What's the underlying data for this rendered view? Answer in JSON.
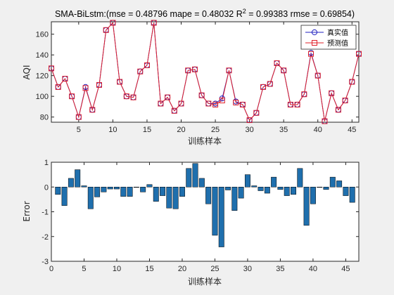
{
  "chart_data": [
    {
      "type": "line",
      "title": "SMA-BiLstm:(mse = 0.48796 mape = 0.48032  R",
      "title_sup": "2",
      "title_tail": " = 0.99383 rmse = 0.69854)",
      "xlabel": "训练样本",
      "ylabel": "AQI",
      "xlim": [
        1,
        46
      ],
      "ylim": [
        75,
        172
      ],
      "xticks": [
        5,
        10,
        15,
        20,
        25,
        30,
        35,
        40,
        45
      ],
      "yticks": [
        80,
        100,
        120,
        140,
        160
      ],
      "legend_position": "top-right",
      "x": [
        1,
        2,
        3,
        4,
        5,
        6,
        7,
        8,
        9,
        10,
        11,
        12,
        13,
        14,
        15,
        16,
        17,
        18,
        19,
        20,
        21,
        22,
        23,
        24,
        25,
        26,
        27,
        28,
        29,
        30,
        31,
        32,
        33,
        34,
        35,
        36,
        37,
        38,
        39,
        40,
        41,
        42,
        43,
        44,
        45,
        46
      ],
      "series": [
        {
          "name": "真实值",
          "color": "#1f1fbf",
          "marker": "circle",
          "values": [
            127,
            109,
            117,
            100,
            80,
            109,
            87,
            111,
            164,
            171,
            114,
            100,
            99,
            124,
            130,
            171,
            93,
            99,
            86,
            93,
            125,
            126,
            101,
            93,
            93,
            98,
            125,
            95,
            92,
            77,
            84,
            109,
            112,
            132,
            125,
            92,
            92,
            102,
            142,
            120,
            76,
            103,
            87,
            96,
            114,
            141
          ]
        },
        {
          "name": "预测值",
          "color": "#e0202a",
          "marker": "square",
          "values": [
            127,
            109,
            117,
            100,
            80,
            108,
            87,
            111,
            164,
            171,
            114,
            100,
            99,
            124,
            130,
            171,
            93,
            99,
            86,
            93,
            125,
            126,
            101,
            93,
            92,
            96,
            125,
            94,
            92,
            77,
            84,
            109,
            112,
            132,
            125,
            92,
            92,
            102,
            141,
            120,
            76,
            103,
            87,
            96,
            114,
            141
          ]
        }
      ]
    },
    {
      "type": "bar",
      "xlabel": "训练样本",
      "ylabel": "Error",
      "xlim": [
        0,
        47
      ],
      "ylim": [
        -3,
        1
      ],
      "xticks": [
        0,
        5,
        10,
        15,
        20,
        25,
        30,
        35,
        40,
        45
      ],
      "yticks": [
        -3,
        -2,
        -1,
        0,
        1
      ],
      "bar_color": "#1f6fad",
      "x": [
        1,
        2,
        3,
        4,
        5,
        6,
        7,
        8,
        9,
        10,
        11,
        12,
        13,
        14,
        15,
        16,
        17,
        18,
        19,
        20,
        21,
        22,
        23,
        24,
        25,
        26,
        27,
        28,
        29,
        30,
        31,
        32,
        33,
        34,
        35,
        36,
        37,
        38,
        39,
        40,
        41,
        42,
        43,
        44,
        45,
        46
      ],
      "values": [
        -0.3,
        -0.75,
        0.35,
        0.7,
        0.05,
        -0.88,
        -0.4,
        -0.2,
        -0.08,
        -0.08,
        -0.38,
        -0.38,
        0.0,
        -0.2,
        0.1,
        -0.58,
        -0.35,
        -0.85,
        -0.88,
        -0.38,
        0.75,
        0.95,
        0.35,
        -0.68,
        -1.95,
        -2.42,
        -0.12,
        -0.95,
        -0.45,
        0.5,
        0.05,
        -0.15,
        -0.25,
        0.4,
        -0.1,
        -0.35,
        -0.3,
        0.75,
        -1.55,
        -0.68,
        0.0,
        -0.1,
        0.4,
        0.25,
        -0.35,
        -0.62
      ]
    }
  ]
}
